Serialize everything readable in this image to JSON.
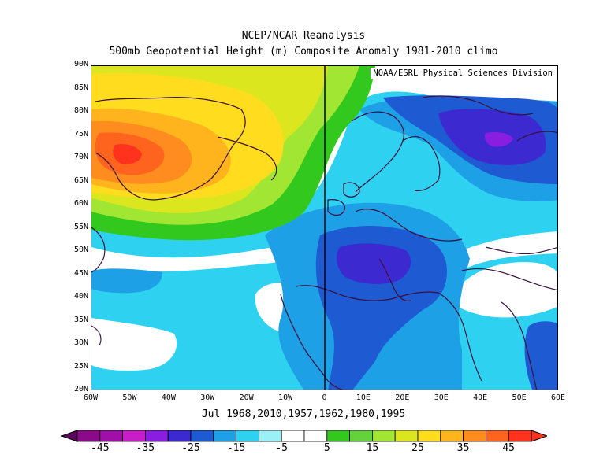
{
  "title_line1": "NCEP/NCAR Reanalysis",
  "title_line2": "500mb Geopotential Height (m) Composite Anomaly 1981-2010 climo",
  "credit": "NOAA/ESRL Physical Sciences Division",
  "subtitle_dates": "Jul 1968,2010,1957,1962,1980,1995",
  "lat_labels": [
    "90N",
    "85N",
    "80N",
    "75N",
    "70N",
    "65N",
    "60N",
    "55N",
    "50N",
    "45N",
    "40N",
    "35N",
    "30N",
    "25N",
    "20N"
  ],
  "lon_labels": [
    "60W",
    "50W",
    "40W",
    "30W",
    "20W",
    "10W",
    "0",
    "10E",
    "20E",
    "30E",
    "40E",
    "50E",
    "60E"
  ],
  "colorbar": {
    "labels": [
      "-45",
      "-35",
      "-25",
      "-15",
      "-5",
      "5",
      "15",
      "25",
      "35",
      "45"
    ],
    "colors": [
      "#8a0a8a",
      "#a010a8",
      "#c81ec8",
      "#8a1ee0",
      "#3c2ad0",
      "#1e5ad2",
      "#1ea0e6",
      "#2ed2f0",
      "#9af0f6",
      "#ffffff",
      "#ffffff",
      "#32c81e",
      "#64d23c",
      "#a0e632",
      "#dce61e",
      "#ffdc1e",
      "#ffb41e",
      "#ff8c1e",
      "#ff641e",
      "#ff321e"
    ]
  },
  "map_data": {
    "variable": "500mb geopotential height anomaly",
    "units": "m",
    "lon_range": [
      -60,
      60
    ],
    "lat_range": [
      20,
      90
    ],
    "min_anomaly_approx": -35,
    "max_anomaly_approx": 40
  }
}
